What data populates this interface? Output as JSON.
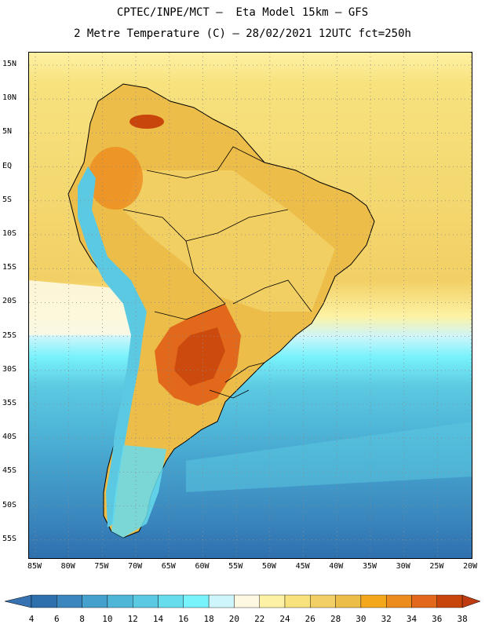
{
  "title": {
    "line1": "CPTEC/INPE/MCT –  Eta Model 15km – GFS",
    "line2": "2 Metre Temperature (C) – 28/02/2021 12UTC fct=250h"
  },
  "map": {
    "region": "South America",
    "variable": "2 Metre Temperature",
    "units": "C",
    "lat_labels": [
      "15N",
      "10N",
      "5N",
      "EQ",
      "5S",
      "10S",
      "15S",
      "20S",
      "25S",
      "30S",
      "35S",
      "40S",
      "45S",
      "50S",
      "55S"
    ],
    "lon_labels": [
      "85W",
      "80W",
      "75W",
      "70W",
      "65W",
      "60W",
      "55W",
      "50W",
      "45W",
      "40W",
      "35W",
      "30W",
      "25W",
      "20W"
    ]
  },
  "colorbar": {
    "labels": [
      "4",
      "6",
      "8",
      "10",
      "12",
      "14",
      "16",
      "18",
      "20",
      "22",
      "24",
      "26",
      "28",
      "30",
      "32",
      "34",
      "36",
      "38"
    ],
    "colors": [
      "#2e6fae",
      "#3a86bd",
      "#44a0cc",
      "#4fb6d8",
      "#5cc9e2",
      "#66dced",
      "#78f2fb",
      "#cdf5fb",
      "#fdf8e2",
      "#fdf2a4",
      "#f7e27e",
      "#f2d065",
      "#edbd49",
      "#f3a81c",
      "#ec8b1e",
      "#e2691b",
      "#c8450b"
    ],
    "low_color": "#3773b1",
    "high_color": "#bf3c12"
  }
}
